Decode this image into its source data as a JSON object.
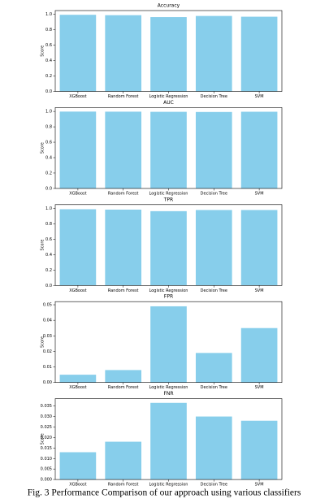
{
  "chart_data": [
    {
      "type": "bar",
      "title": "Accuracy",
      "ylabel": "Score",
      "color": "#87ceeb",
      "categories": [
        "XGBoost",
        "Random Forest",
        "Logistic Regression",
        "Decision Tree",
        "SVM"
      ],
      "values": [
        0.995,
        0.99,
        0.965,
        0.98,
        0.97
      ],
      "ylim": [
        0,
        1.05
      ],
      "yticks": [
        {
          "value": 0,
          "label": "0.0"
        },
        0.2,
        0.4,
        0.6,
        0.8,
        {
          "value": 1,
          "label": "1.0"
        }
      ]
    },
    {
      "type": "bar",
      "title": "AUC",
      "ylabel": "Score",
      "color": "#87ceeb",
      "categories": [
        "XGBoost",
        "Random Forest",
        "Logistic Regression",
        "Decision Tree",
        "SVM"
      ],
      "values": [
        0.998,
        0.997,
        0.995,
        0.993,
        0.996
      ],
      "ylim": [
        0,
        1.05
      ],
      "yticks": [
        {
          "value": 0,
          "label": "0.0"
        },
        0.2,
        0.4,
        0.6,
        0.8,
        {
          "value": 1,
          "label": "1.0"
        }
      ]
    },
    {
      "type": "bar",
      "title": "TPR",
      "ylabel": "Score",
      "color": "#87ceeb",
      "categories": [
        "XGBoost",
        "Random Forest",
        "Logistic Regression",
        "Decision Tree",
        "SVM"
      ],
      "values": [
        0.99,
        0.985,
        0.965,
        0.98,
        0.98
      ],
      "ylim": [
        0,
        1.05
      ],
      "yticks": [
        {
          "value": 0,
          "label": "0.0"
        },
        0.2,
        0.4,
        0.6,
        0.8,
        {
          "value": 1,
          "label": "1.0"
        }
      ]
    },
    {
      "type": "bar",
      "title": "FPR",
      "ylabel": "Score",
      "color": "#87ceeb",
      "categories": [
        "XGBoost",
        "Random Forest",
        "Logistic Regression",
        "Decision Tree",
        "SVM"
      ],
      "values": [
        0.005,
        0.008,
        0.049,
        0.019,
        0.035
      ],
      "ylim": [
        0,
        0.052
      ],
      "yticks": [
        {
          "value": 0,
          "label": "0.00"
        },
        0.01,
        0.02,
        0.03,
        0.04,
        0.05
      ]
    },
    {
      "type": "bar",
      "title": "FNR",
      "ylabel": "Score",
      "color": "#87ceeb",
      "categories": [
        "XGBoost",
        "Random Forest",
        "Logistic Regression",
        "Decision Tree",
        "SVM"
      ],
      "values": [
        0.013,
        0.018,
        0.0365,
        0.03,
        0.028
      ],
      "ylim": [
        0,
        0.0385
      ],
      "yticks": [
        {
          "value": 0,
          "label": "0.000"
        },
        0.005,
        {
          "value": 0.01,
          "label": "0.010"
        },
        0.015,
        {
          "value": 0.02,
          "label": "0.020"
        },
        0.025,
        {
          "value": 0.03,
          "label": "0.030"
        },
        0.035
      ]
    }
  ],
  "caption": "Fig. 3 Performance Comparison of our approach using various classifiers"
}
